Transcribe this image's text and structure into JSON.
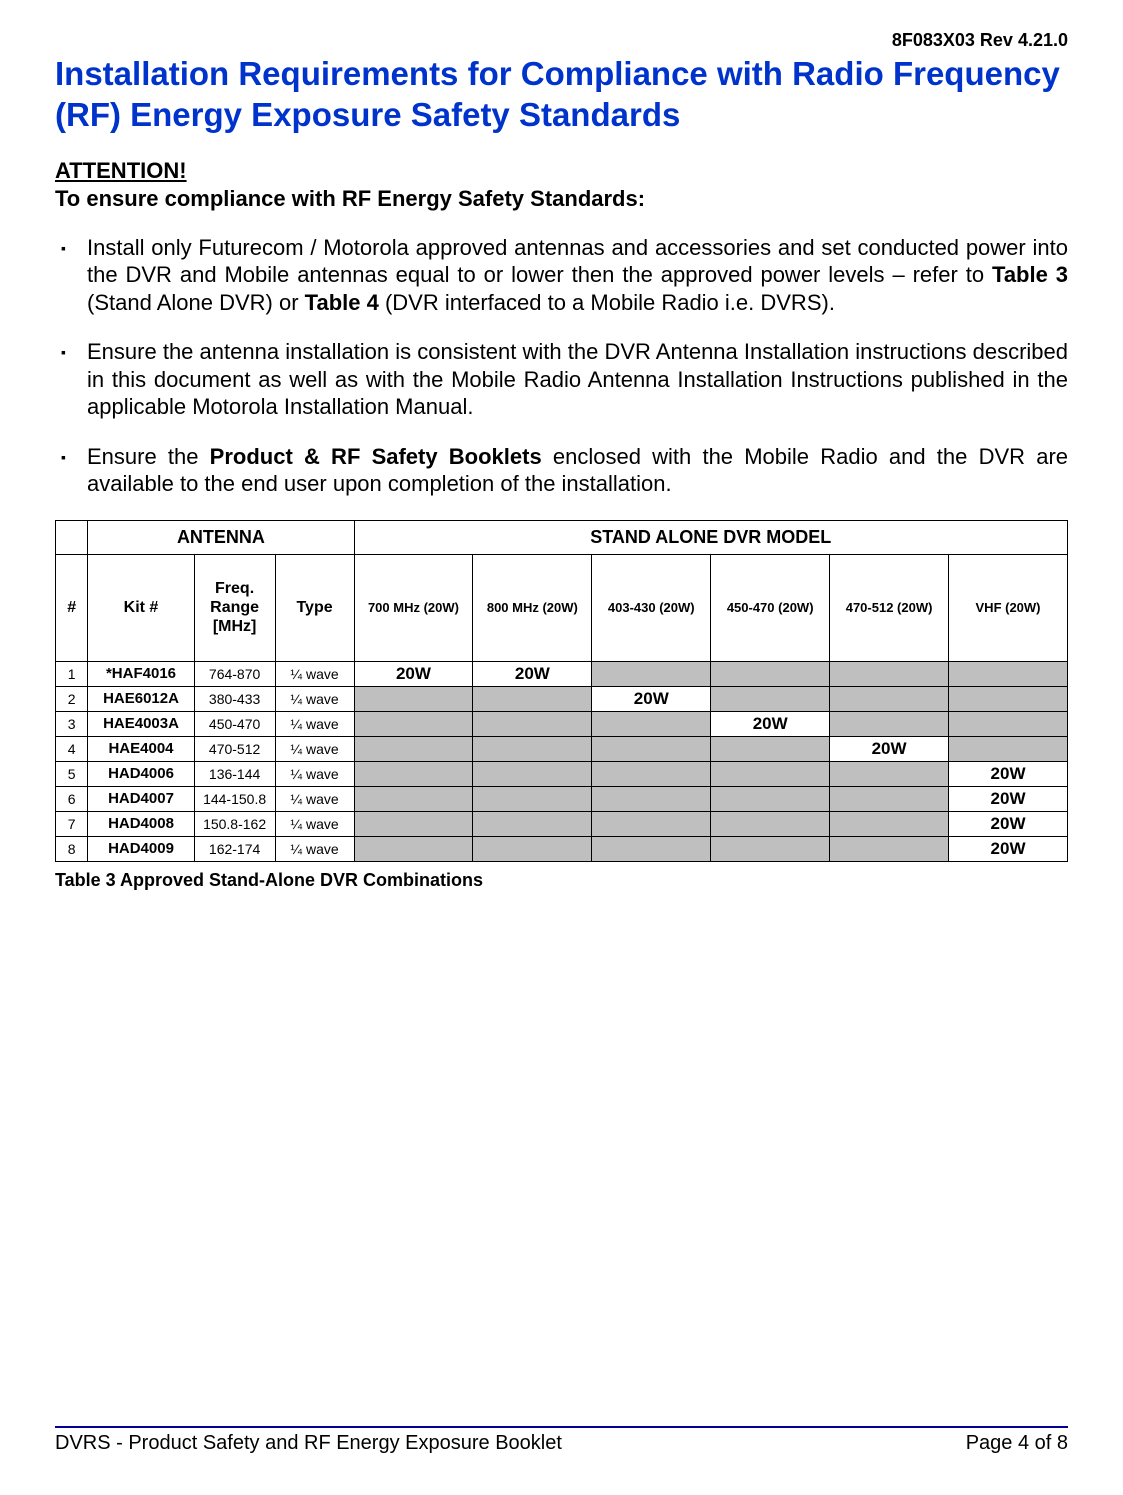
{
  "doc_id": "8F083X03 Rev 4.21.0",
  "title": "Installation Requirements for Compliance with Radio Frequency (RF) Energy Exposure Safety Standards",
  "attention_label": "ATTENTION!",
  "compliance_lead": "To ensure compliance with RF Energy Safety Standards:",
  "bullets": {
    "b1_pre": "Install only Futurecom / Motorola approved antennas and accessories and set conducted power into the DVR and Mobile antennas equal to or lower then the approved power levels – refer to ",
    "b1_t3": "Table 3",
    "b1_mid": " (Stand Alone DVR) or ",
    "b1_t4": "Table 4",
    "b1_post": " (DVR interfaced to a Mobile Radio i.e. DVRS).",
    "b2": "Ensure the antenna installation is consistent with the DVR Antenna Installation instructions described in this document as well as with the Mobile Radio Antenna Installation Instructions published in the applicable Motorola Installation Manual.",
    "b3_pre": "Ensure the ",
    "b3_bold": "Product & RF Safety Booklets",
    "b3_post": " enclosed with the Mobile Radio and the DVR are available to the end user upon completion of the installation."
  },
  "table": {
    "group_antenna": "ANTENNA",
    "group_dvr": "STAND ALONE DVR MODEL",
    "headers": {
      "num": "#",
      "kit": "Kit #",
      "freq": "Freq. Range [MHz]",
      "type": "Type",
      "d1": "700 MHz (20W)",
      "d2": "800 MHz (20W)",
      "d3": "403-430 (20W)",
      "d4": "450-470 (20W)",
      "d5": "470-512 (20W)",
      "d6": "VHF (20W)"
    },
    "rows": [
      {
        "num": "1",
        "kit": "*HAF4016",
        "freq": "764-870",
        "type": "¼ wave",
        "d1": "20W",
        "d2": "20W",
        "d3": "",
        "d4": "",
        "d5": "",
        "d6": ""
      },
      {
        "num": "2",
        "kit": "HAE6012A",
        "freq": "380-433",
        "type": "¼ wave",
        "d1": "",
        "d2": "",
        "d3": "20W",
        "d4": "",
        "d5": "",
        "d6": ""
      },
      {
        "num": "3",
        "kit": "HAE4003A",
        "freq": "450-470",
        "type": "¼ wave",
        "d1": "",
        "d2": "",
        "d3": "",
        "d4": "20W",
        "d5": "",
        "d6": ""
      },
      {
        "num": "4",
        "kit": "HAE4004",
        "freq": "470-512",
        "type": "¼ wave",
        "d1": "",
        "d2": "",
        "d3": "",
        "d4": "",
        "d5": "20W",
        "d6": ""
      },
      {
        "num": "5",
        "kit": "HAD4006",
        "freq": "136-144",
        "type": "¼ wave",
        "d1": "",
        "d2": "",
        "d3": "",
        "d4": "",
        "d5": "",
        "d6": "20W"
      },
      {
        "num": "6",
        "kit": "HAD4007",
        "freq": "144-150.8",
        "type": "¼ wave",
        "d1": "",
        "d2": "",
        "d3": "",
        "d4": "",
        "d5": "",
        "d6": "20W"
      },
      {
        "num": "7",
        "kit": "HAD4008",
        "freq": "150.8-162",
        "type": "¼ wave",
        "d1": "",
        "d2": "",
        "d3": "",
        "d4": "",
        "d5": "",
        "d6": "20W"
      },
      {
        "num": "8",
        "kit": "HAD4009",
        "freq": "162-174",
        "type": "¼ wave",
        "d1": "",
        "d2": "",
        "d3": "",
        "d4": "",
        "d5": "",
        "d6": "20W"
      }
    ],
    "caption": "Table 3 Approved Stand-Alone DVR Combinations"
  },
  "footer": {
    "left": "DVRS - Product Safety and RF Energy Exposure Booklet",
    "right": "Page 4 of 8"
  },
  "colors": {
    "title": "#0033cc",
    "rule": "#000099",
    "shaded": "#bfbfbf",
    "text": "#000000",
    "bg": "#ffffff"
  }
}
